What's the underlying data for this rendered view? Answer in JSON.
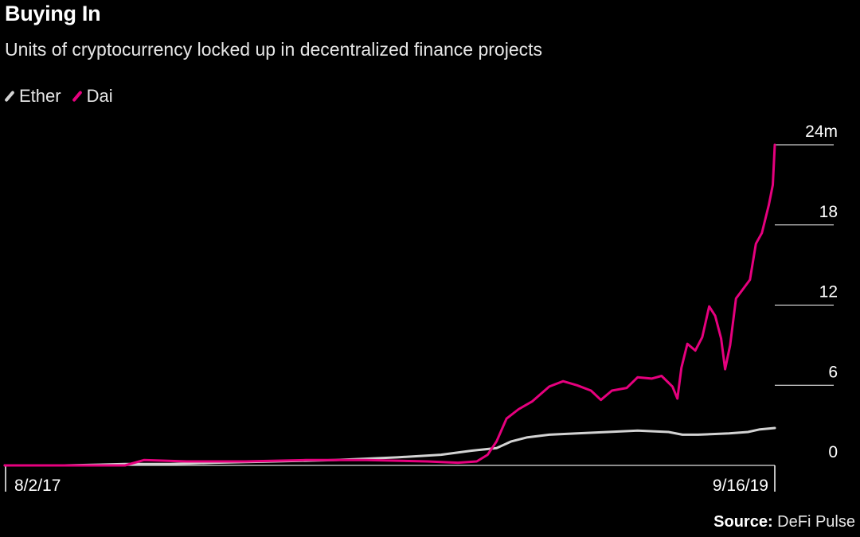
{
  "chart_data": {
    "type": "line",
    "title": "Buying In",
    "subtitle": "Units of cryptocurrency locked up in decentralized finance projects",
    "source_label": "Source:",
    "source_value": " DeFi Pulse",
    "x_start": "8/2/17",
    "x_end": "9/16/19",
    "x_tick_labels": [
      "8/2/17",
      "9/16/19"
    ],
    "y_ticks": [
      {
        "value": 0,
        "label": "0"
      },
      {
        "value": 6,
        "label": "6"
      },
      {
        "value": 12,
        "label": "12"
      },
      {
        "value": 18,
        "label": "18"
      },
      {
        "value": 24,
        "label": "24m"
      }
    ],
    "ylim": [
      0,
      24
    ],
    "legend_position": "top-left",
    "grid": "horizontal ticks at right axis",
    "series": [
      {
        "name": "Ether",
        "color": "#d3d3d3",
        "points": [
          [
            "8/2/17",
            0.0
          ],
          [
            "10/1/17",
            0.0
          ],
          [
            "12/1/17",
            0.1
          ],
          [
            "1/15/18",
            0.1
          ],
          [
            "3/1/18",
            0.2
          ],
          [
            "5/1/18",
            0.3
          ],
          [
            "7/1/18",
            0.4
          ],
          [
            "9/1/18",
            0.6
          ],
          [
            "10/15/18",
            0.8
          ],
          [
            "11/15/18",
            1.1
          ],
          [
            "12/10/18",
            1.3
          ],
          [
            "12/25/18",
            1.8
          ],
          [
            "1/10/19",
            2.1
          ],
          [
            "2/1/19",
            2.3
          ],
          [
            "3/1/19",
            2.4
          ],
          [
            "4/1/19",
            2.5
          ],
          [
            "5/1/19",
            2.6
          ],
          [
            "6/1/19",
            2.5
          ],
          [
            "6/15/19",
            2.3
          ],
          [
            "7/1/19",
            2.3
          ],
          [
            "8/1/19",
            2.4
          ],
          [
            "8/20/19",
            2.5
          ],
          [
            "9/1/19",
            2.7
          ],
          [
            "9/16/19",
            2.8
          ]
        ]
      },
      {
        "name": "Dai",
        "color": "#e6007e",
        "points": [
          [
            "8/2/17",
            0.0
          ],
          [
            "12/1/17",
            0.0
          ],
          [
            "12/20/17",
            0.4
          ],
          [
            "2/1/18",
            0.3
          ],
          [
            "4/1/18",
            0.3
          ],
          [
            "6/1/18",
            0.4
          ],
          [
            "8/1/18",
            0.4
          ],
          [
            "10/1/18",
            0.3
          ],
          [
            "11/1/18",
            0.2
          ],
          [
            "11/20/18",
            0.3
          ],
          [
            "12/1/18",
            0.8
          ],
          [
            "12/10/18",
            1.8
          ],
          [
            "12/20/18",
            3.5
          ],
          [
            "1/1/19",
            4.2
          ],
          [
            "1/15/19",
            4.8
          ],
          [
            "2/1/19",
            5.9
          ],
          [
            "2/15/19",
            6.3
          ],
          [
            "3/1/19",
            6.0
          ],
          [
            "3/15/19",
            5.6
          ],
          [
            "3/25/19",
            4.9
          ],
          [
            "4/5/19",
            5.6
          ],
          [
            "4/20/19",
            5.8
          ],
          [
            "5/1/19",
            6.6
          ],
          [
            "5/15/19",
            6.5
          ],
          [
            "5/25/19",
            6.7
          ],
          [
            "6/5/19",
            5.9
          ],
          [
            "6/10/19",
            5.0
          ],
          [
            "6/14/19",
            7.3
          ],
          [
            "6/20/19",
            9.1
          ],
          [
            "6/28/19",
            8.6
          ],
          [
            "7/5/19",
            9.6
          ],
          [
            "7/12/19",
            11.9
          ],
          [
            "7/18/19",
            11.2
          ],
          [
            "7/24/19",
            9.5
          ],
          [
            "7/28/19",
            7.2
          ],
          [
            "8/2/19",
            9.0
          ],
          [
            "8/8/19",
            12.5
          ],
          [
            "8/15/19",
            13.2
          ],
          [
            "8/22/19",
            13.9
          ],
          [
            "8/28/19",
            16.6
          ],
          [
            "9/3/19",
            17.4
          ],
          [
            "9/10/19",
            19.5
          ],
          [
            "9/14/19",
            21.0
          ],
          [
            "9/16/19",
            24.0
          ]
        ]
      }
    ]
  }
}
